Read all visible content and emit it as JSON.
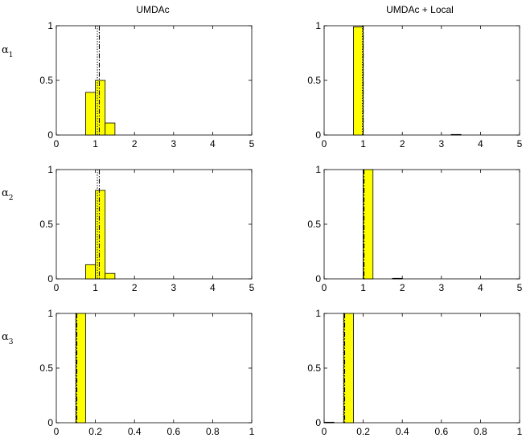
{
  "col_titles": [
    "UMDAc",
    "UMDAc + Local"
  ],
  "row_labels": [
    {
      "symbol": "α",
      "subscript": "1"
    },
    {
      "symbol": "α",
      "subscript": "2"
    },
    {
      "symbol": "α",
      "subscript": "3"
    }
  ],
  "colors": {
    "bar_fill": "#ffff00",
    "bar_edge": "#000000",
    "axis": "#000000",
    "background": "#ffffff"
  },
  "chart_data": [
    {
      "type": "bar",
      "row": 0,
      "col": 0,
      "bin_width": 0.25,
      "bins": [
        {
          "x": 0.75,
          "value": 0.39
        },
        {
          "x": 1.0,
          "value": 0.5
        },
        {
          "x": 1.25,
          "value": 0.11
        }
      ],
      "vlines": [
        {
          "x": 1.05,
          "style": "dotted"
        },
        {
          "x": 1.1,
          "style": "dashdot"
        }
      ],
      "xlim": [
        0,
        5
      ],
      "ylim": [
        0,
        1
      ],
      "xticks": [
        "0",
        "1",
        "2",
        "3",
        "4",
        "5"
      ],
      "yticks": [
        "0",
        "0.5",
        "1"
      ]
    },
    {
      "type": "bar",
      "row": 0,
      "col": 1,
      "bin_width": 0.25,
      "bins": [
        {
          "x": 0.75,
          "value": 0.99
        },
        {
          "x": 3.25,
          "value": 0.005
        }
      ],
      "vlines": [
        {
          "x": 0.98,
          "style": "dotted"
        },
        {
          "x": 1.0,
          "style": "dashdot"
        }
      ],
      "xlim": [
        0,
        5
      ],
      "ylim": [
        0,
        1
      ],
      "xticks": [
        "0",
        "1",
        "2",
        "3",
        "4",
        "5"
      ],
      "yticks": [
        "0",
        "0.5",
        "1"
      ]
    },
    {
      "type": "bar",
      "row": 1,
      "col": 0,
      "bin_width": 0.25,
      "bins": [
        {
          "x": 0.75,
          "value": 0.13
        },
        {
          "x": 1.0,
          "value": 0.81
        },
        {
          "x": 1.25,
          "value": 0.05
        }
      ],
      "vlines": [
        {
          "x": 1.05,
          "style": "dotted"
        },
        {
          "x": 1.1,
          "style": "dashdot"
        }
      ],
      "xlim": [
        0,
        5
      ],
      "ylim": [
        0,
        1
      ],
      "xticks": [
        "0",
        "1",
        "2",
        "3",
        "4",
        "5"
      ],
      "yticks": [
        "0",
        "0.5",
        "1"
      ]
    },
    {
      "type": "bar",
      "row": 1,
      "col": 1,
      "bin_width": 0.25,
      "bins": [
        {
          "x": 1.0,
          "value": 1.0
        },
        {
          "x": 1.75,
          "value": 0.005
        }
      ],
      "vlines": [
        {
          "x": 1.0,
          "style": "dotted"
        },
        {
          "x": 1.02,
          "style": "dashdot"
        }
      ],
      "xlim": [
        0,
        5
      ],
      "ylim": [
        0,
        1
      ],
      "xticks": [
        "0",
        "1",
        "2",
        "3",
        "4",
        "5"
      ],
      "yticks": [
        "0",
        "0.5",
        "1"
      ]
    },
    {
      "type": "bar",
      "row": 2,
      "col": 0,
      "bin_width": 0.05,
      "bins": [
        {
          "x": 0.1,
          "value": 1.0
        }
      ],
      "vlines": [
        {
          "x": 0.1,
          "style": "dotted"
        },
        {
          "x": 0.105,
          "style": "dashdot"
        }
      ],
      "xlim": [
        0,
        1
      ],
      "ylim": [
        0,
        1
      ],
      "xticks": [
        "0",
        "0.2",
        "0.4",
        "0.6",
        "0.8",
        "1"
      ],
      "yticks": [
        "0",
        "0.5",
        "1"
      ]
    },
    {
      "type": "bar",
      "row": 2,
      "col": 1,
      "bin_width": 0.05,
      "bins": [
        {
          "x": 0.0,
          "value": 0.005
        },
        {
          "x": 0.1,
          "value": 1.0
        }
      ],
      "vlines": [
        {
          "x": 0.1,
          "style": "dotted"
        },
        {
          "x": 0.105,
          "style": "dashdot"
        }
      ],
      "xlim": [
        0,
        1
      ],
      "ylim": [
        0,
        1
      ],
      "xticks": [
        "0",
        "0.2",
        "0.4",
        "0.6",
        "0.8",
        "1"
      ],
      "yticks": [
        "0",
        "0.5",
        "1"
      ]
    }
  ]
}
